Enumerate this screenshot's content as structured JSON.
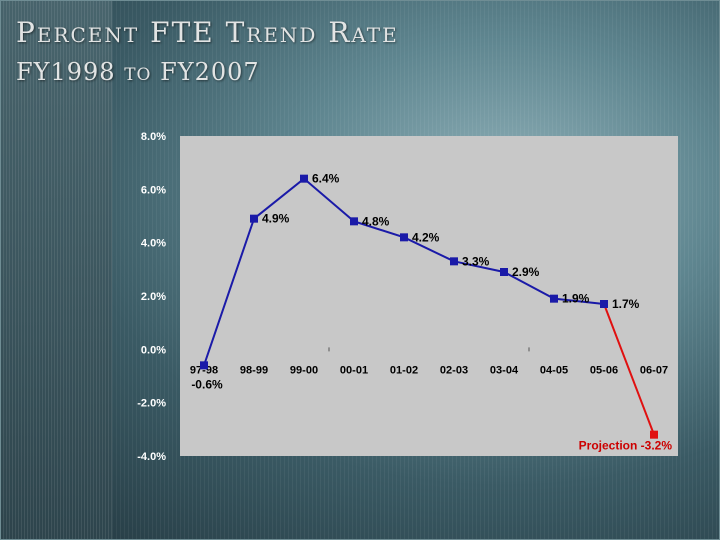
{
  "slide": {
    "title": "Percent FTE Trend Rate",
    "subtitle": "FY1998 to FY2007"
  },
  "chart_data": {
    "type": "line",
    "categories": [
      "97-98",
      "98-99",
      "99-00",
      "00-01",
      "01-02",
      "02-03",
      "03-04",
      "04-05",
      "05-06",
      "06-07"
    ],
    "values": [
      -0.6,
      4.9,
      6.4,
      4.8,
      4.2,
      3.3,
      2.9,
      1.9,
      1.7,
      -3.2
    ],
    "data_labels": [
      "-0.6%",
      "4.9%",
      "6.4%",
      "4.8%",
      "4.2%",
      "3.3%",
      "2.9%",
      "1.9%",
      "1.7%",
      "Projection -3.2%"
    ],
    "y_tick_labels": [
      "8.0%",
      "6.0%",
      "4.0%",
      "2.0%",
      "0.0%",
      "-2.0%",
      "-4.0%"
    ],
    "y_ticks": [
      8,
      6,
      4,
      2,
      0,
      -2,
      -4
    ],
    "ylim": [
      -4,
      8
    ],
    "grid": false,
    "legend": "none",
    "colors": {
      "actual_series": "#1a1aa8",
      "projection_segment": "#e01010",
      "plot_background": "#c8c8c8",
      "axis_text": "#ffffff",
      "label_text": "#000000",
      "projection_label_text": "#cc0000"
    }
  }
}
